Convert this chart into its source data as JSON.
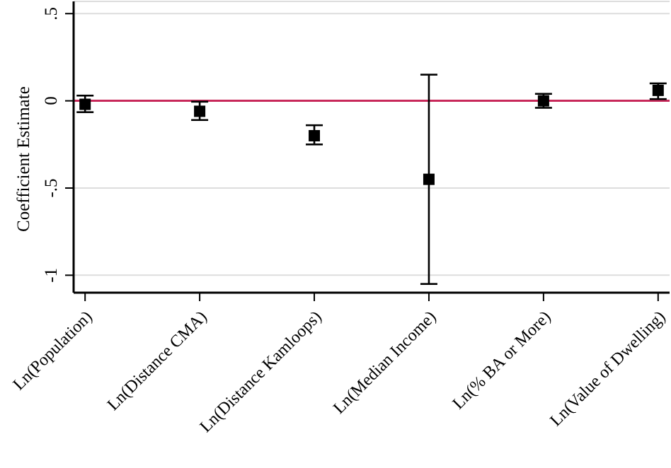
{
  "chart_data": {
    "type": "scatter",
    "ylabel": "Coefficient Estimate",
    "categories": [
      "Ln(Population)",
      "Ln(Distance CMA)",
      "Ln(Distance Kamloops)",
      "Ln(Median Income)",
      "Ln(% BA or More)",
      "Ln(Value of Dwelling)"
    ],
    "series": [
      {
        "color": "#000000",
        "values": [
          -0.02,
          -0.06,
          -0.2,
          -0.45,
          0.0,
          0.06
        ],
        "errors": [
          [
            -0.065,
            0.03
          ],
          [
            -0.11,
            -0.005
          ],
          [
            -0.25,
            -0.14
          ],
          [
            -1.05,
            0.15
          ],
          [
            -0.04,
            0.04
          ],
          [
            0.01,
            0.1
          ]
        ]
      }
    ],
    "ylim": [
      -1.1,
      0.57
    ],
    "yticks": [
      {
        "value": -1,
        "label": "-1"
      },
      {
        "value": -0.5,
        "label": "-.5"
      },
      {
        "value": 0,
        "label": "0"
      },
      {
        "value": 0.5,
        "label": ".5"
      }
    ],
    "ref_lines": [
      {
        "axis": "y",
        "value": 0,
        "color": "#c8285a"
      }
    ],
    "grid": "y",
    "marker": "square"
  }
}
